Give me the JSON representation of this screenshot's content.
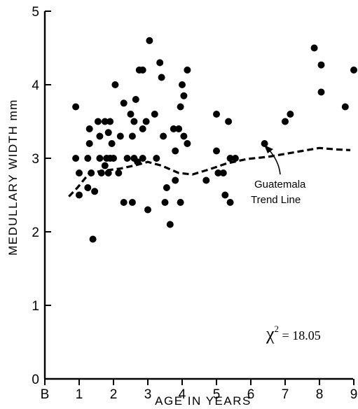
{
  "chart_data": {
    "type": "scatter",
    "xlabel": "AGE IN YEARS",
    "ylabel": "MEDULLARY WIDTH mm",
    "xlim": [
      0,
      9
    ],
    "ylim": [
      0,
      5
    ],
    "x_ticks": [
      {
        "value": 0,
        "label": "B"
      },
      {
        "value": 1,
        "label": "1"
      },
      {
        "value": 2,
        "label": "2"
      },
      {
        "value": 3,
        "label": "3"
      },
      {
        "value": 4,
        "label": "4"
      },
      {
        "value": 5,
        "label": "5"
      },
      {
        "value": 6,
        "label": "6"
      },
      {
        "value": 7,
        "label": "7"
      },
      {
        "value": 8,
        "label": "8"
      },
      {
        "value": 9,
        "label": "9"
      }
    ],
    "y_ticks": [
      {
        "value": 0,
        "label": "0"
      },
      {
        "value": 1,
        "label": "1"
      },
      {
        "value": 2,
        "label": "2"
      },
      {
        "value": 3,
        "label": "3"
      },
      {
        "value": 4,
        "label": "4"
      },
      {
        "value": 5,
        "label": "5"
      }
    ],
    "points": [
      [
        0.9,
        3.7
      ],
      [
        0.9,
        3.0
      ],
      [
        1.0,
        2.8
      ],
      [
        1.0,
        2.5
      ],
      [
        1.25,
        3.0
      ],
      [
        1.3,
        3.2
      ],
      [
        1.3,
        3.4
      ],
      [
        1.25,
        2.6
      ],
      [
        1.35,
        2.8
      ],
      [
        1.4,
        1.9
      ],
      [
        1.45,
        2.55
      ],
      [
        1.55,
        3.5
      ],
      [
        1.6,
        3.3
      ],
      [
        1.6,
        3.0
      ],
      [
        1.65,
        2.8
      ],
      [
        1.75,
        3.5
      ],
      [
        1.8,
        3.0
      ],
      [
        1.75,
        2.9
      ],
      [
        1.85,
        3.35
      ],
      [
        1.9,
        3.5
      ],
      [
        1.95,
        3.2
      ],
      [
        1.9,
        3.0
      ],
      [
        1.85,
        2.8
      ],
      [
        2.0,
        3.0
      ],
      [
        2.05,
        4.0
      ],
      [
        2.2,
        3.3
      ],
      [
        2.15,
        2.8
      ],
      [
        2.3,
        3.75
      ],
      [
        2.4,
        3.0
      ],
      [
        2.3,
        2.4
      ],
      [
        2.5,
        3.6
      ],
      [
        2.55,
        3.3
      ],
      [
        2.6,
        3.5
      ],
      [
        2.65,
        3.8
      ],
      [
        2.6,
        3.0
      ],
      [
        2.55,
        2.4
      ],
      [
        2.7,
        2.95
      ],
      [
        2.75,
        4.2
      ],
      [
        2.85,
        4.2
      ],
      [
        2.85,
        3.4
      ],
      [
        2.85,
        3.0
      ],
      [
        2.95,
        3.5
      ],
      [
        3.0,
        2.3
      ],
      [
        3.05,
        4.6
      ],
      [
        3.2,
        3.6
      ],
      [
        3.25,
        3.0
      ],
      [
        3.35,
        4.3
      ],
      [
        3.4,
        4.1
      ],
      [
        3.45,
        3.3
      ],
      [
        3.5,
        2.4
      ],
      [
        3.55,
        2.6
      ],
      [
        3.65,
        2.1
      ],
      [
        3.75,
        3.4
      ],
      [
        3.8,
        3.1
      ],
      [
        3.8,
        2.7
      ],
      [
        3.9,
        3.4
      ],
      [
        3.95,
        3.7
      ],
      [
        3.95,
        2.4
      ],
      [
        4.0,
        4.0
      ],
      [
        4.05,
        3.85
      ],
      [
        4.05,
        3.3
      ],
      [
        4.15,
        4.2
      ],
      [
        4.15,
        3.2
      ],
      [
        4.7,
        2.7
      ],
      [
        5.0,
        3.6
      ],
      [
        5.0,
        3.1
      ],
      [
        5.05,
        2.8
      ],
      [
        5.2,
        2.8
      ],
      [
        5.25,
        2.5
      ],
      [
        5.35,
        3.5
      ],
      [
        5.4,
        3.0
      ],
      [
        5.4,
        2.4
      ],
      [
        5.55,
        3.0
      ],
      [
        6.4,
        3.2
      ],
      [
        7.0,
        3.5
      ],
      [
        7.15,
        3.6
      ],
      [
        7.85,
        4.5
      ],
      [
        8.05,
        4.27
      ],
      [
        8.05,
        3.9
      ],
      [
        8.75,
        3.7
      ],
      [
        9.0,
        4.2
      ]
    ],
    "trend_line": {
      "style": "dashed",
      "points": [
        [
          0.7,
          2.48
        ],
        [
          0.95,
          2.6
        ],
        [
          1.3,
          2.8
        ],
        [
          1.7,
          2.83
        ],
        [
          2.2,
          2.86
        ],
        [
          2.6,
          2.9
        ],
        [
          3.0,
          2.95
        ],
        [
          3.4,
          2.9
        ],
        [
          3.9,
          2.8
        ],
        [
          4.3,
          2.78
        ],
        [
          4.8,
          2.85
        ],
        [
          5.3,
          2.93
        ],
        [
          5.9,
          2.99
        ],
        [
          6.5,
          3.02
        ],
        [
          7.0,
          3.06
        ],
        [
          7.5,
          3.1
        ],
        [
          8.0,
          3.14
        ],
        [
          8.5,
          3.12
        ],
        [
          8.9,
          3.11
        ]
      ]
    },
    "annotations": {
      "trend_label_line1": "Guatemala",
      "trend_label_line2": "Trend Line",
      "stat_prefix": "χ",
      "stat_sup": "2",
      "stat_value": " = 18.05"
    }
  }
}
